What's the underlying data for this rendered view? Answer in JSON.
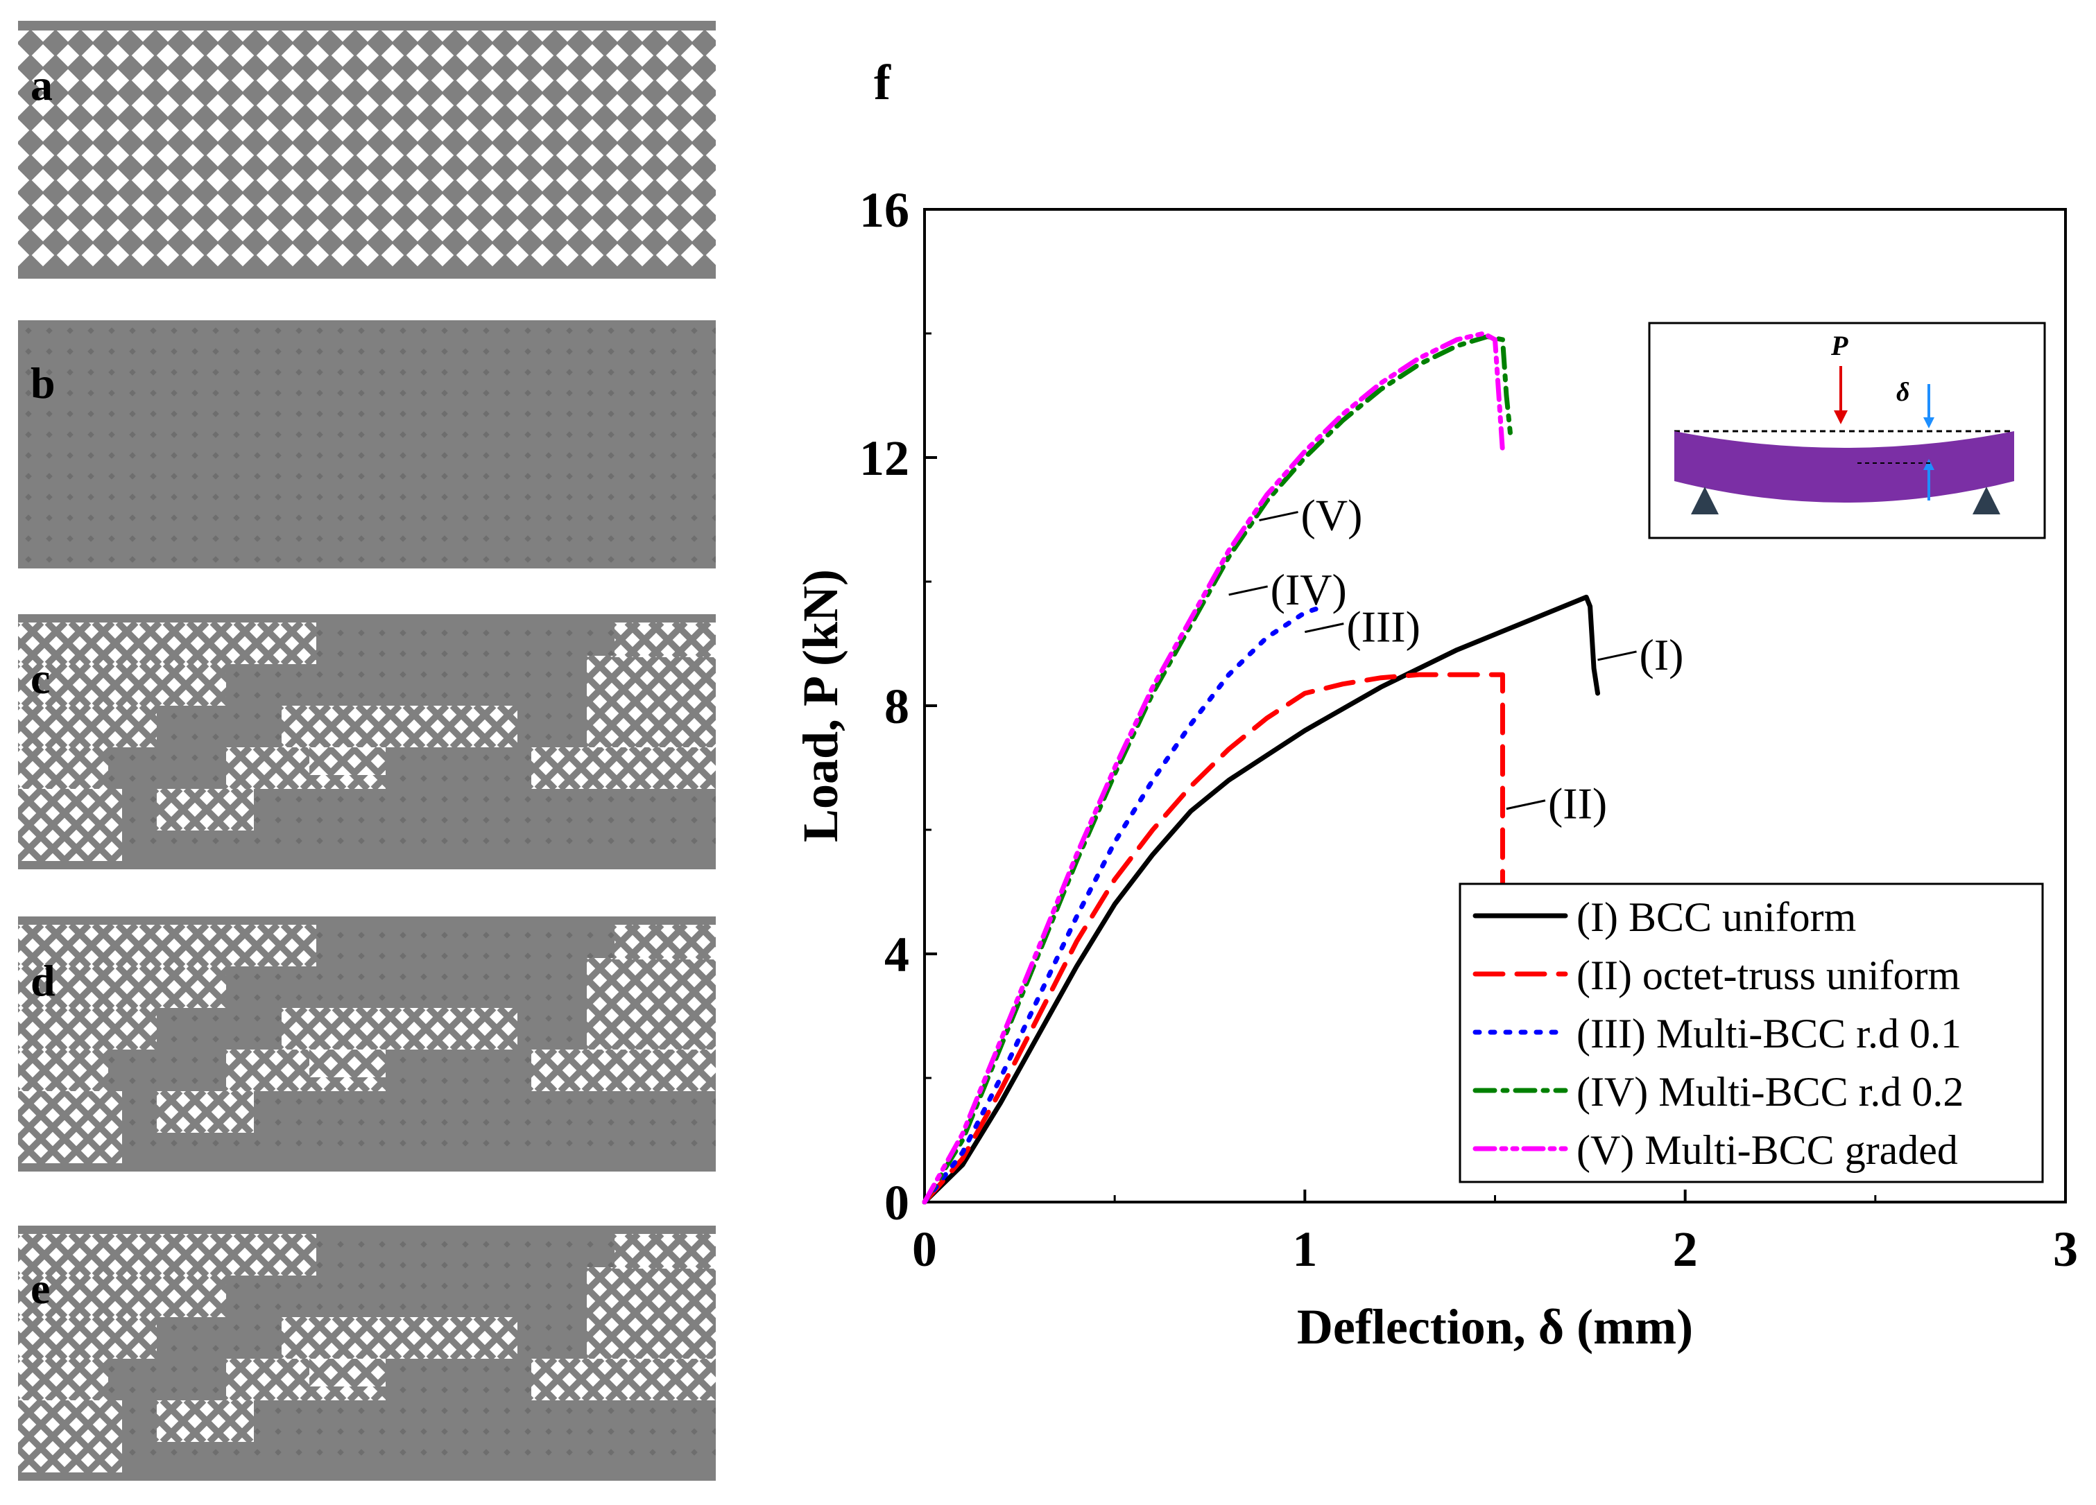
{
  "panels": [
    {
      "label": "a",
      "pattern": "bcc-uniform"
    },
    {
      "label": "b",
      "pattern": "octet-uniform"
    },
    {
      "label": "c",
      "pattern": "multi-bcc-0.1"
    },
    {
      "label": "d",
      "pattern": "multi-bcc-0.2"
    },
    {
      "label": "e",
      "pattern": "multi-bcc-graded"
    }
  ],
  "figure_label": "f",
  "colors": {
    "lattice": "#808080",
    "lattice_dark": "#6e6e6e",
    "background": "#ffffff",
    "beam": "#7b2fa5",
    "support": "#2d3e4f"
  },
  "chart_data": {
    "type": "line",
    "xlabel": "Deflection, δ (mm)",
    "ylabel": "Load, P (kN)",
    "xlim": [
      0,
      3
    ],
    "ylim": [
      0,
      16
    ],
    "xticks": [
      "0",
      "1",
      "2",
      "3"
    ],
    "yticks": [
      "0",
      "4",
      "8",
      "12",
      "16"
    ],
    "legend_position": "lower-right",
    "series": [
      {
        "name": "(I) BCC uniform",
        "tag": "(I)",
        "color": "#000000",
        "dash": "solid",
        "x": [
          0,
          0.1,
          0.2,
          0.3,
          0.4,
          0.5,
          0.6,
          0.7,
          0.8,
          0.9,
          1.0,
          1.2,
          1.4,
          1.6,
          1.72,
          1.74,
          1.75,
          1.76,
          1.77
        ],
        "y": [
          0,
          0.6,
          1.6,
          2.7,
          3.8,
          4.8,
          5.6,
          6.3,
          6.8,
          7.2,
          7.6,
          8.3,
          8.9,
          9.4,
          9.7,
          9.75,
          9.6,
          8.6,
          8.2
        ]
      },
      {
        "name": "(II) octet-truss uniform",
        "tag": "(II)",
        "color": "#ff0000",
        "dash": "long-dash",
        "x": [
          0,
          0.1,
          0.2,
          0.3,
          0.4,
          0.5,
          0.6,
          0.7,
          0.8,
          0.9,
          1.0,
          1.1,
          1.2,
          1.3,
          1.4,
          1.5,
          1.52,
          1.52
        ],
        "y": [
          0,
          0.7,
          1.8,
          3.0,
          4.2,
          5.2,
          6.0,
          6.7,
          7.3,
          7.8,
          8.2,
          8.35,
          8.45,
          8.5,
          8.5,
          8.5,
          8.5,
          5.0
        ]
      },
      {
        "name": "(III) Multi-BCC r.d 0.1",
        "tag": "(III)",
        "color": "#0000ff",
        "dash": "dot",
        "x": [
          0,
          0.1,
          0.2,
          0.3,
          0.4,
          0.5,
          0.6,
          0.7,
          0.8,
          0.9,
          1.0,
          1.05
        ],
        "y": [
          0,
          0.8,
          2.0,
          3.3,
          4.6,
          5.8,
          6.8,
          7.7,
          8.5,
          9.1,
          9.5,
          9.6
        ]
      },
      {
        "name": "(IV) Multi-BCC r.d 0.2",
        "tag": "(IV)",
        "color": "#008000",
        "dash": "dash-dot",
        "x": [
          0,
          0.1,
          0.2,
          0.3,
          0.4,
          0.5,
          0.6,
          0.7,
          0.8,
          0.9,
          1.0,
          1.1,
          1.2,
          1.3,
          1.4,
          1.48,
          1.52,
          1.53,
          1.54
        ],
        "y": [
          0,
          1.0,
          2.5,
          4.0,
          5.5,
          6.9,
          8.2,
          9.3,
          10.4,
          11.3,
          12.0,
          12.6,
          13.1,
          13.5,
          13.8,
          13.95,
          13.9,
          13.0,
          12.4
        ]
      },
      {
        "name": "(V) Multi-BCC graded",
        "tag": "(V)",
        "color": "#ff00ff",
        "dash": "dash-dot-dot",
        "x": [
          0,
          0.1,
          0.2,
          0.3,
          0.4,
          0.5,
          0.6,
          0.7,
          0.8,
          0.9,
          1.0,
          1.1,
          1.2,
          1.3,
          1.4,
          1.47,
          1.5,
          1.51,
          1.52
        ],
        "y": [
          0,
          1.1,
          2.6,
          4.1,
          5.6,
          7.0,
          8.3,
          9.4,
          10.5,
          11.4,
          12.1,
          12.7,
          13.2,
          13.6,
          13.9,
          14.0,
          13.9,
          13.0,
          12.1
        ]
      }
    ],
    "annotations": [
      {
        "text": "(V)",
        "x": 0.88,
        "y": 11.1
      },
      {
        "text": "(IV)",
        "x": 0.8,
        "y": 9.9
      },
      {
        "text": "(III)",
        "x": 1.0,
        "y": 9.3
      },
      {
        "text": "(I)",
        "x": 1.77,
        "y": 8.85
      },
      {
        "text": "(II)",
        "x": 1.53,
        "y": 6.45
      }
    ],
    "inset": {
      "load_label": "P",
      "deflection_label": "δ"
    }
  }
}
